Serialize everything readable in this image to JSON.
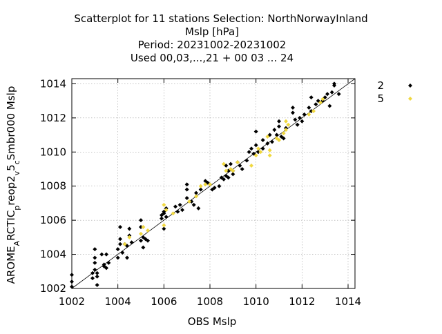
{
  "chart_data": {
    "type": "scatter",
    "title_lines": [
      "Scatterplot for   11 stations Selection: NorthNorwayInland",
      "Mslp [hPa]",
      "Period: 20231002-20231002",
      "Used  00,03,...,21  + 00 03 ... 24"
    ],
    "xlabel": "OBS Mslp",
    "ylabel": {
      "parts": [
        {
          "text": "AROME",
          "sub": false
        },
        {
          "text": "A",
          "sub": true
        },
        {
          "text": "RCTIC",
          "sub": false
        },
        {
          "text": "p",
          "sub": true
        },
        {
          "text": "reop2",
          "sub": false
        },
        {
          "text": "v",
          "sub": true
        },
        {
          "text": "5",
          "sub": false
        },
        {
          "text": "c",
          "sub": true
        },
        {
          "text": "Smbr000 Mslp",
          "sub": false
        }
      ]
    },
    "xlim": [
      1002,
      1014.3
    ],
    "ylim": [
      1002,
      1014.3
    ],
    "xticks": [
      "1002",
      "1004",
      "1006",
      "1008",
      "1010",
      "1012",
      "1014"
    ],
    "yticks": [
      "1002",
      "1004",
      "1006",
      "1008",
      "1010",
      "1012",
      "1014"
    ],
    "grid": true,
    "diagonal_line": true,
    "legend_position": "outside-right-top",
    "series": [
      {
        "name": "2",
        "color": "#000000",
        "marker": "diamond",
        "points": [
          [
            1002.0,
            1002.8
          ],
          [
            1002.0,
            1002.4
          ],
          [
            1002.0,
            1002.1
          ],
          [
            1002.9,
            1002.6
          ],
          [
            1002.9,
            1002.9
          ],
          [
            1003.0,
            1003.1
          ],
          [
            1003.0,
            1003.5
          ],
          [
            1003.0,
            1003.8
          ],
          [
            1003.0,
            1004.3
          ],
          [
            1003.1,
            1002.2
          ],
          [
            1003.1,
            1002.7
          ],
          [
            1003.1,
            1002.9
          ],
          [
            1003.3,
            1004.0
          ],
          [
            1003.4,
            1003.4
          ],
          [
            1003.4,
            1003.3
          ],
          [
            1003.5,
            1004.0
          ],
          [
            1003.5,
            1003.2
          ],
          [
            1003.6,
            1003.5
          ],
          [
            1004.0,
            1003.8
          ],
          [
            1004.0,
            1004.3
          ],
          [
            1004.1,
            1004.6
          ],
          [
            1004.1,
            1005.6
          ],
          [
            1004.1,
            1004.9
          ],
          [
            1004.2,
            1004.1
          ],
          [
            1004.3,
            1004.6
          ],
          [
            1004.4,
            1003.8
          ],
          [
            1004.4,
            1004.5
          ],
          [
            1004.5,
            1005.1
          ],
          [
            1004.5,
            1005.5
          ],
          [
            1004.6,
            1004.7
          ],
          [
            1005.0,
            1004.8
          ],
          [
            1005.0,
            1005.6
          ],
          [
            1005.0,
            1006.0
          ],
          [
            1005.1,
            1005.0
          ],
          [
            1005.1,
            1004.4
          ],
          [
            1005.2,
            1004.9
          ],
          [
            1005.3,
            1004.8
          ],
          [
            1005.9,
            1006.1
          ],
          [
            1005.9,
            1006.3
          ],
          [
            1006.0,
            1006.5
          ],
          [
            1006.0,
            1006.4
          ],
          [
            1006.0,
            1005.5
          ],
          [
            1006.1,
            1006.2
          ],
          [
            1006.1,
            1006.7
          ],
          [
            1006.5,
            1006.8
          ],
          [
            1006.6,
            1006.5
          ],
          [
            1006.7,
            1006.9
          ],
          [
            1006.8,
            1006.6
          ],
          [
            1007.0,
            1007.8
          ],
          [
            1007.0,
            1008.1
          ],
          [
            1007.0,
            1007.3
          ],
          [
            1007.2,
            1007.1
          ],
          [
            1007.3,
            1006.9
          ],
          [
            1007.4,
            1007.6
          ],
          [
            1007.5,
            1006.7
          ],
          [
            1007.6,
            1007.8
          ],
          [
            1007.8,
            1008.3
          ],
          [
            1007.9,
            1008.2
          ],
          [
            1008.0,
            1008.1
          ],
          [
            1008.1,
            1007.8
          ],
          [
            1008.2,
            1007.9
          ],
          [
            1008.4,
            1008.0
          ],
          [
            1008.5,
            1008.5
          ],
          [
            1008.6,
            1008.4
          ],
          [
            1008.7,
            1008.6
          ],
          [
            1008.7,
            1009.2
          ],
          [
            1008.8,
            1008.5
          ],
          [
            1008.8,
            1008.9
          ],
          [
            1008.9,
            1009.3
          ],
          [
            1009.0,
            1008.9
          ],
          [
            1009.0,
            1008.7
          ],
          [
            1009.2,
            1009.4
          ],
          [
            1009.3,
            1009.2
          ],
          [
            1009.4,
            1009.0
          ],
          [
            1009.6,
            1009.5
          ],
          [
            1009.7,
            1010.0
          ],
          [
            1009.8,
            1010.2
          ],
          [
            1009.9,
            1009.9
          ],
          [
            1010.0,
            1010.4
          ],
          [
            1010.0,
            1011.2
          ],
          [
            1010.1,
            1010.0
          ],
          [
            1010.3,
            1010.2
          ],
          [
            1010.3,
            1010.7
          ],
          [
            1010.5,
            1010.5
          ],
          [
            1010.6,
            1011.0
          ],
          [
            1010.7,
            1010.6
          ],
          [
            1010.8,
            1011.3
          ],
          [
            1010.9,
            1011.0
          ],
          [
            1011.0,
            1011.8
          ],
          [
            1011.0,
            1011.5
          ],
          [
            1011.1,
            1010.9
          ],
          [
            1011.2,
            1010.8
          ],
          [
            1011.3,
            1011.4
          ],
          [
            1011.6,
            1012.6
          ],
          [
            1011.6,
            1012.3
          ],
          [
            1011.7,
            1011.9
          ],
          [
            1011.8,
            1011.6
          ],
          [
            1011.9,
            1012.0
          ],
          [
            1012.0,
            1011.8
          ],
          [
            1012.1,
            1012.2
          ],
          [
            1012.3,
            1012.6
          ],
          [
            1012.4,
            1013.2
          ],
          [
            1012.4,
            1012.4
          ],
          [
            1012.6,
            1012.8
          ],
          [
            1012.7,
            1013.0
          ],
          [
            1012.9,
            1013.0
          ],
          [
            1013.0,
            1013.2
          ],
          [
            1013.1,
            1013.4
          ],
          [
            1013.2,
            1012.7
          ],
          [
            1013.3,
            1013.5
          ],
          [
            1013.4,
            1014.0
          ],
          [
            1013.4,
            1013.9
          ],
          [
            1013.6,
            1013.4
          ]
        ]
      },
      {
        "name": "5",
        "color": "#f0d840",
        "marker": "diamond",
        "points": [
          [
            1004.3,
            1004.6
          ],
          [
            1004.5,
            1005.0
          ],
          [
            1005.0,
            1005.2
          ],
          [
            1005.1,
            1005.6
          ],
          [
            1005.3,
            1005.4
          ],
          [
            1006.0,
            1006.9
          ],
          [
            1006.0,
            1005.7
          ],
          [
            1006.1,
            1006.6
          ],
          [
            1006.4,
            1006.4
          ],
          [
            1007.1,
            1007.1
          ],
          [
            1007.4,
            1007.4
          ],
          [
            1007.6,
            1008.0
          ],
          [
            1007.8,
            1008.1
          ],
          [
            1008.0,
            1008.1
          ],
          [
            1008.6,
            1009.3
          ],
          [
            1008.7,
            1008.9
          ],
          [
            1008.9,
            1009.0
          ],
          [
            1009.0,
            1008.9
          ],
          [
            1009.2,
            1009.4
          ],
          [
            1009.8,
            1009.2
          ],
          [
            1010.0,
            1009.8
          ],
          [
            1010.1,
            1010.2
          ],
          [
            1010.2,
            1010.0
          ],
          [
            1010.5,
            1010.9
          ],
          [
            1010.6,
            1010.1
          ],
          [
            1010.6,
            1009.8
          ],
          [
            1010.9,
            1010.8
          ],
          [
            1011.0,
            1010.7
          ],
          [
            1011.2,
            1011.1
          ],
          [
            1011.3,
            1011.8
          ],
          [
            1011.4,
            1011.6
          ],
          [
            1011.3,
            1011.3
          ],
          [
            1012.3,
            1012.2
          ],
          [
            1012.5,
            1012.4
          ],
          [
            1012.8,
            1012.9
          ],
          [
            1012.9,
            1013.1
          ]
        ]
      }
    ]
  }
}
